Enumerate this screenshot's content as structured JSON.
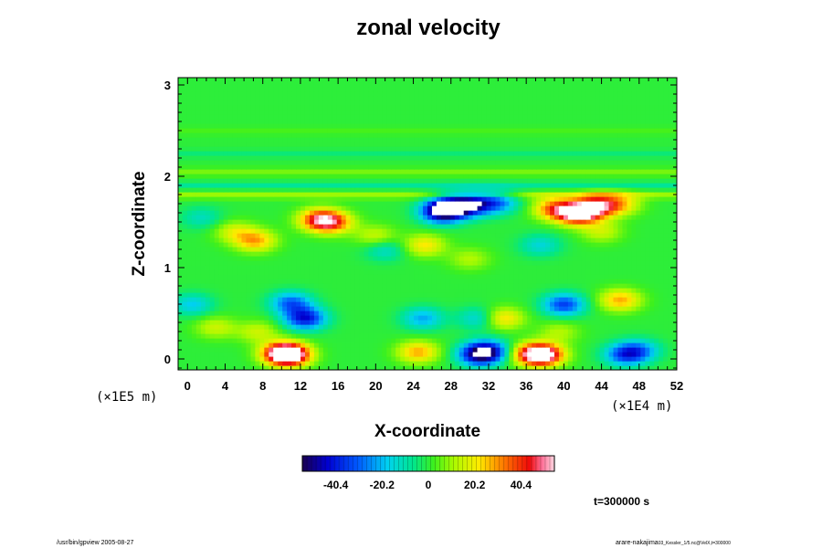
{
  "chart_data": {
    "type": "heatmap",
    "title": "zonal velocity",
    "xlabel": "X-coordinate",
    "ylabel": "Z-coordinate",
    "x_scale_label": "(×1E4 m)",
    "y_scale_label": "(×1E5 m)",
    "xlim": [
      -1,
      52
    ],
    "ylim": [
      -0.12,
      3.08
    ],
    "xticks": [
      "0",
      "4",
      "8",
      "12",
      "16",
      "20",
      "24",
      "28",
      "32",
      "36",
      "40",
      "44",
      "48",
      "52"
    ],
    "xtick_values": [
      0,
      4,
      8,
      12,
      16,
      20,
      24,
      28,
      32,
      36,
      40,
      44,
      48,
      52
    ],
    "yticks": [
      "0",
      "1",
      "2",
      "3"
    ],
    "ytick_values": [
      0,
      1,
      2,
      3
    ],
    "colorbar": {
      "range": [
        -55,
        55
      ],
      "ticks": [
        "-40.4",
        "-20.2",
        "0",
        "20.2",
        "40.4"
      ],
      "tick_values": [
        -40.4,
        -20.2,
        0,
        20.2,
        40.4
      ]
    },
    "features": [
      {
        "x": 10.8,
        "z": 0.05,
        "value": 60
      },
      {
        "x": 10.0,
        "z": 0.07,
        "value": 35
      },
      {
        "x": 12.5,
        "z": 0.45,
        "value": -42
      },
      {
        "x": 11.0,
        "z": 0.62,
        "value": -30
      },
      {
        "x": 31.0,
        "z": 0.05,
        "value": -45
      },
      {
        "x": 32.0,
        "z": 0.1,
        "value": -30
      },
      {
        "x": 37.8,
        "z": 0.05,
        "value": 55
      },
      {
        "x": 36.5,
        "z": 0.06,
        "value": 30
      },
      {
        "x": 46.5,
        "z": 0.05,
        "value": -32
      },
      {
        "x": 48.0,
        "z": 0.1,
        "value": -22
      },
      {
        "x": 24.5,
        "z": 0.08,
        "value": 28
      },
      {
        "x": 25.0,
        "z": 0.45,
        "value": -22
      },
      {
        "x": 31.0,
        "z": 0.45,
        "value": -18
      },
      {
        "x": 33.5,
        "z": 0.45,
        "value": 25
      },
      {
        "x": 40.0,
        "z": 0.6,
        "value": -35
      },
      {
        "x": 46.0,
        "z": 0.65,
        "value": 28
      },
      {
        "x": 0.5,
        "z": 0.6,
        "value": -18
      },
      {
        "x": 3.0,
        "z": 0.35,
        "value": 15
      },
      {
        "x": 7.5,
        "z": 0.3,
        "value": 15
      },
      {
        "x": 39.5,
        "z": 0.3,
        "value": 12
      },
      {
        "x": 14.0,
        "z": 1.53,
        "value": 40
      },
      {
        "x": 15.5,
        "z": 1.5,
        "value": 30
      },
      {
        "x": 7.2,
        "z": 1.3,
        "value": 28
      },
      {
        "x": 5.0,
        "z": 1.4,
        "value": 16
      },
      {
        "x": 25.2,
        "z": 1.25,
        "value": 22
      },
      {
        "x": 27.0,
        "z": 1.62,
        "value": -55
      },
      {
        "x": 28.5,
        "z": 1.68,
        "value": -42
      },
      {
        "x": 30.5,
        "z": 1.7,
        "value": -35
      },
      {
        "x": 33.0,
        "z": 1.72,
        "value": -25
      },
      {
        "x": 41.5,
        "z": 1.6,
        "value": 58
      },
      {
        "x": 43.5,
        "z": 1.68,
        "value": 44
      },
      {
        "x": 39.0,
        "z": 1.65,
        "value": 34
      },
      {
        "x": 46.0,
        "z": 1.7,
        "value": 22
      },
      {
        "x": 21.0,
        "z": 1.2,
        "value": -14
      },
      {
        "x": 37.5,
        "z": 1.25,
        "value": -15
      },
      {
        "x": 20.0,
        "z": 1.35,
        "value": 15
      },
      {
        "x": 44.0,
        "z": 1.4,
        "value": 15
      },
      {
        "x": 1.5,
        "z": 1.55,
        "value": -12
      },
      {
        "x": 30.0,
        "z": 1.1,
        "value": 12
      }
    ],
    "bands": [
      {
        "z": 1.8,
        "value": 10
      },
      {
        "z": 1.9,
        "value": -8
      },
      {
        "z": 2.05,
        "value": 7
      },
      {
        "z": 2.25,
        "value": -5
      },
      {
        "z": 2.5,
        "value": 3
      }
    ],
    "time_label": "t=300000 s"
  },
  "footer": {
    "left": "/usr/bin/gpview 2005-08-27",
    "right_main": "arare-nakajima",
    "right_sub": "03_Kessler_1/5.nc@VelX,t=300000"
  }
}
